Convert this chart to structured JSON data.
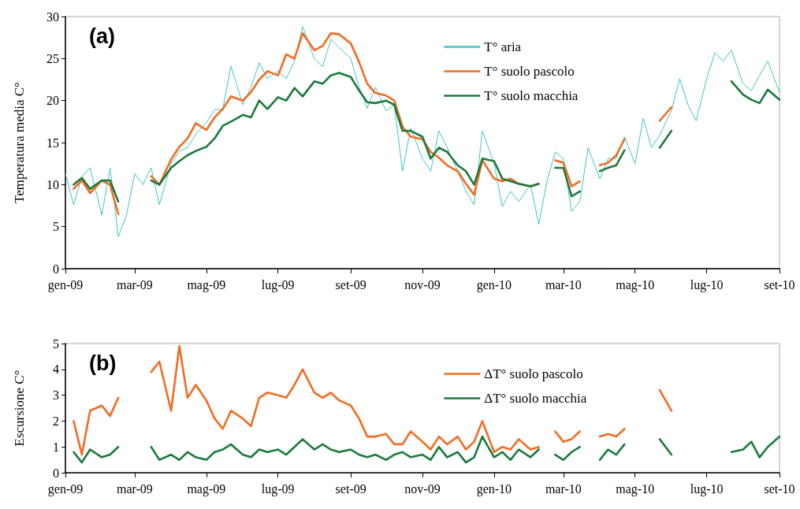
{
  "chart_data": [
    {
      "type": "line",
      "title": "(a)",
      "ylabel": "Temperatura media C°",
      "x": [
        "2009-01-01",
        "2009-01-08",
        "2009-01-15",
        "2009-01-22",
        "2009-02-01",
        "2009-02-08",
        "2009-02-15",
        "2009-02-22",
        "2009-03-01",
        "2009-03-08",
        "2009-03-15",
        "2009-03-22",
        "2009-04-01",
        "2009-04-08",
        "2009-04-15",
        "2009-04-22",
        "2009-05-01",
        "2009-05-08",
        "2009-05-15",
        "2009-05-22",
        "2009-06-01",
        "2009-06-08",
        "2009-06-15",
        "2009-06-22",
        "2009-07-01",
        "2009-07-08",
        "2009-07-15",
        "2009-07-22",
        "2009-08-01",
        "2009-08-08",
        "2009-08-15",
        "2009-08-22",
        "2009-09-01",
        "2009-09-08",
        "2009-09-15",
        "2009-09-22",
        "2009-10-01",
        "2009-10-08",
        "2009-10-15",
        "2009-10-22",
        "2009-11-01",
        "2009-11-08",
        "2009-11-15",
        "2009-11-22",
        "2009-12-01",
        "2009-12-08",
        "2009-12-15",
        "2009-12-22",
        "2010-01-01",
        "2010-01-08",
        "2010-01-15",
        "2010-01-22",
        "2010-02-01",
        "2010-02-08",
        "2010-02-15",
        "2010-02-22",
        "2010-03-01",
        "2010-03-08",
        "2010-03-15",
        "2010-03-22",
        "2010-04-01",
        "2010-04-08",
        "2010-04-15",
        "2010-04-22",
        "2010-05-01",
        "2010-05-08",
        "2010-05-15",
        "2010-05-22",
        "2010-06-01",
        "2010-06-08",
        "2010-06-15",
        "2010-06-22",
        "2010-07-01",
        "2010-07-08",
        "2010-07-15",
        "2010-07-22",
        "2010-08-01",
        "2010-08-08",
        "2010-08-15",
        "2010-08-22",
        "2010-09-01"
      ],
      "xlim": [
        "2009-01-01",
        "2010-09-01"
      ],
      "xticks": [
        {
          "value": "2009-01-01",
          "label": "gen-09"
        },
        {
          "value": "2009-03-01",
          "label": "mar-09"
        },
        {
          "value": "2009-05-01",
          "label": "mag-09"
        },
        {
          "value": "2009-07-01",
          "label": "lug-09"
        },
        {
          "value": "2009-09-01",
          "label": "set-09"
        },
        {
          "value": "2009-11-01",
          "label": "nov-09"
        },
        {
          "value": "2010-01-01",
          "label": "gen-10"
        },
        {
          "value": "2010-03-01",
          "label": "mar-10"
        },
        {
          "value": "2010-05-01",
          "label": "mag-10"
        },
        {
          "value": "2010-07-01",
          "label": "lug-10"
        },
        {
          "value": "2010-09-01",
          "label": "set-10"
        }
      ],
      "ylim": [
        0,
        30
      ],
      "yticks": [
        0,
        5,
        10,
        15,
        20,
        25,
        30
      ],
      "grid": false,
      "legend": "top",
      "marker": "none",
      "line_style": "solid",
      "series": [
        {
          "name": "T° aria",
          "color": "#40c4c4",
          "values": [
            11.3,
            7.6,
            10.9,
            12,
            6.4,
            12,
            3.8,
            6.4,
            11.3,
            10,
            12,
            7.6,
            12.5,
            14,
            14.4,
            16,
            17.4,
            18.9,
            19,
            24.1,
            19.5,
            21.6,
            24.5,
            22.6,
            23.5,
            22.6,
            24.7,
            28.8,
            25,
            24,
            27.3,
            26.3,
            25,
            21.6,
            19.1,
            21.6,
            18.8,
            19.5,
            11.6,
            16.7,
            13.1,
            11.6,
            16.4,
            14.4,
            11.6,
            9.2,
            7.6,
            16.4,
            12.5,
            7.4,
            9.2,
            8,
            10,
            5.3,
            10.4,
            13.9,
            13.1,
            6.8,
            8,
            14.4,
            10.7,
            13.1,
            13.1,
            15.7,
            12.5,
            17.9,
            14.4,
            15.9,
            18.8,
            22.6,
            19.5,
            17.6,
            22.6,
            25.7,
            24.7,
            26,
            22,
            21.2,
            23,
            24.7,
            21
          ]
        },
        {
          "name": "T° suolo pascolo",
          "color": "#f26b21",
          "values": [
            null,
            9.5,
            10.5,
            9,
            10.5,
            10,
            6.5,
            null,
            null,
            null,
            11,
            10,
            13,
            14.5,
            15.5,
            17.3,
            16.5,
            18,
            19,
            20.5,
            20,
            21,
            22.5,
            23.5,
            23,
            25.5,
            25,
            28,
            26,
            26.5,
            28,
            27.9,
            26.8,
            24.6,
            22,
            20.9,
            20.6,
            20,
            16.9,
            15.7,
            15.4,
            13.9,
            13.2,
            12.3,
            11.6,
            10.1,
            8.8,
            12.9,
            10.7,
            10.4,
            10.7,
            10.1,
            9.8,
            10.1,
            null,
            12.9,
            12.6,
            9.8,
            10.4,
            null,
            12.3,
            12.6,
            13.5,
            15.4,
            null,
            null,
            null,
            17.6,
            19.2,
            null,
            null,
            null,
            null,
            null,
            null,
            null,
            null,
            null,
            null,
            null,
            null
          ]
        },
        {
          "name": "T° suolo macchia",
          "color": "#1a7a3c",
          "values": [
            null,
            10,
            10.8,
            9.5,
            10.5,
            10.5,
            8,
            null,
            null,
            null,
            10.5,
            10,
            12,
            12.8,
            13.5,
            14,
            14.5,
            15.5,
            17,
            17.5,
            18.3,
            18,
            20,
            19,
            20.4,
            20,
            21.5,
            20.5,
            22.3,
            22,
            23,
            23.3,
            22.8,
            21.2,
            19.8,
            19.7,
            20,
            19.5,
            16.4,
            16.4,
            15.7,
            13.1,
            14.4,
            13.9,
            12.3,
            11.6,
            10,
            13.1,
            12.8,
            10.7,
            10.4,
            10.1,
            9.8,
            10.1,
            null,
            12,
            12,
            8.6,
            9.2,
            null,
            11.6,
            12,
            12.3,
            14.1,
            null,
            null,
            null,
            14.4,
            16.4,
            null,
            null,
            null,
            null,
            null,
            null,
            22.3,
            20.7,
            20.1,
            19.7,
            21.3,
            20.1
          ]
        }
      ]
    },
    {
      "type": "line",
      "title": "(b)",
      "ylabel": "Escursione C°",
      "x": [
        "2009-01-08",
        "2009-01-15",
        "2009-01-22",
        "2009-02-01",
        "2009-02-08",
        "2009-02-15",
        "2009-02-22",
        "2009-03-01",
        "2009-03-08",
        "2009-03-15",
        "2009-03-22",
        "2009-04-01",
        "2009-04-08",
        "2009-04-15",
        "2009-04-22",
        "2009-05-01",
        "2009-05-08",
        "2009-05-15",
        "2009-05-22",
        "2009-06-01",
        "2009-06-08",
        "2009-06-15",
        "2009-06-22",
        "2009-07-01",
        "2009-07-08",
        "2009-07-15",
        "2009-07-22",
        "2009-08-01",
        "2009-08-08",
        "2009-08-15",
        "2009-08-22",
        "2009-09-01",
        "2009-09-08",
        "2009-09-15",
        "2009-09-22",
        "2009-10-01",
        "2009-10-08",
        "2009-10-15",
        "2009-10-22",
        "2009-11-01",
        "2009-11-08",
        "2009-11-15",
        "2009-11-22",
        "2009-12-01",
        "2009-12-08",
        "2009-12-15",
        "2009-12-22",
        "2010-01-01",
        "2010-01-08",
        "2010-01-15",
        "2010-01-22",
        "2010-02-01",
        "2010-02-08",
        "2010-02-15",
        "2010-02-22",
        "2010-03-01",
        "2010-03-08",
        "2010-03-15",
        "2010-03-22",
        "2010-04-01",
        "2010-04-08",
        "2010-04-15",
        "2010-04-22",
        "2010-05-01",
        "2010-05-08",
        "2010-05-15",
        "2010-05-22",
        "2010-06-01",
        "2010-06-08",
        "2010-06-15",
        "2010-06-22",
        "2010-07-01",
        "2010-07-08",
        "2010-07-15",
        "2010-07-22",
        "2010-08-01",
        "2010-08-08",
        "2010-08-15",
        "2010-08-22",
        "2010-09-01"
      ],
      "xlim": [
        "2009-01-01",
        "2010-09-01"
      ],
      "xticks": [
        {
          "value": "2009-01-01",
          "label": "gen-09"
        },
        {
          "value": "2009-03-01",
          "label": "mar-09"
        },
        {
          "value": "2009-05-01",
          "label": "mag-09"
        },
        {
          "value": "2009-07-01",
          "label": "lug-09"
        },
        {
          "value": "2009-09-01",
          "label": "set-09"
        },
        {
          "value": "2009-11-01",
          "label": "nov-09"
        },
        {
          "value": "2010-01-01",
          "label": "gen-10"
        },
        {
          "value": "2010-03-01",
          "label": "mar-10"
        },
        {
          "value": "2010-05-01",
          "label": "mag-10"
        },
        {
          "value": "2010-07-01",
          "label": "lug-10"
        },
        {
          "value": "2010-09-01",
          "label": "set-10"
        }
      ],
      "ylim": [
        0,
        5
      ],
      "yticks": [
        0,
        1,
        2,
        3,
        4,
        5
      ],
      "grid": false,
      "legend": "top",
      "marker": "none",
      "line_style": "solid",
      "series": [
        {
          "name": "ΔT° suolo pascolo",
          "color": "#f26b21",
          "values": [
            2.0,
            0.7,
            2.4,
            2.6,
            2.2,
            2.9,
            null,
            null,
            null,
            3.9,
            4.3,
            2.4,
            4.9,
            2.9,
            3.4,
            2.8,
            2.1,
            1.7,
            2.4,
            2.1,
            1.8,
            2.9,
            3.1,
            3.0,
            2.9,
            3.4,
            4.0,
            3.1,
            2.9,
            3.1,
            2.8,
            2.6,
            2.1,
            1.4,
            1.4,
            1.5,
            1.1,
            1.1,
            1.6,
            1.2,
            0.9,
            1.4,
            1.1,
            1.4,
            0.9,
            1.2,
            2.0,
            0.8,
            1.0,
            0.9,
            1.3,
            0.9,
            1.0,
            null,
            1.6,
            1.2,
            1.3,
            1.6,
            null,
            1.4,
            1.5,
            1.4,
            1.7,
            null,
            null,
            null,
            3.2,
            2.4,
            null,
            null,
            null,
            null,
            null,
            null,
            null,
            null,
            null,
            null,
            null,
            null
          ]
        },
        {
          "name": "ΔT° suolo macchia",
          "color": "#1a7a3c",
          "values": [
            0.8,
            0.4,
            0.9,
            0.6,
            0.7,
            1.0,
            null,
            null,
            null,
            1.0,
            0.5,
            0.7,
            0.5,
            0.8,
            0.6,
            0.5,
            0.8,
            0.9,
            1.1,
            0.7,
            0.6,
            0.9,
            0.8,
            0.9,
            0.7,
            1.0,
            1.3,
            0.9,
            1.1,
            0.9,
            0.8,
            0.9,
            0.7,
            0.6,
            0.7,
            0.5,
            0.7,
            0.8,
            0.6,
            0.7,
            0.5,
            1.0,
            0.6,
            0.8,
            0.4,
            0.6,
            1.4,
            0.6,
            0.8,
            0.5,
            0.9,
            0.6,
            0.9,
            null,
            0.7,
            0.5,
            0.8,
            1.0,
            null,
            0.5,
            0.9,
            0.7,
            1.1,
            null,
            null,
            null,
            1.3,
            0.7,
            null,
            null,
            null,
            null,
            null,
            null,
            0.8,
            0.9,
            1.2,
            0.6,
            1.0,
            1.4
          ]
        }
      ]
    }
  ]
}
